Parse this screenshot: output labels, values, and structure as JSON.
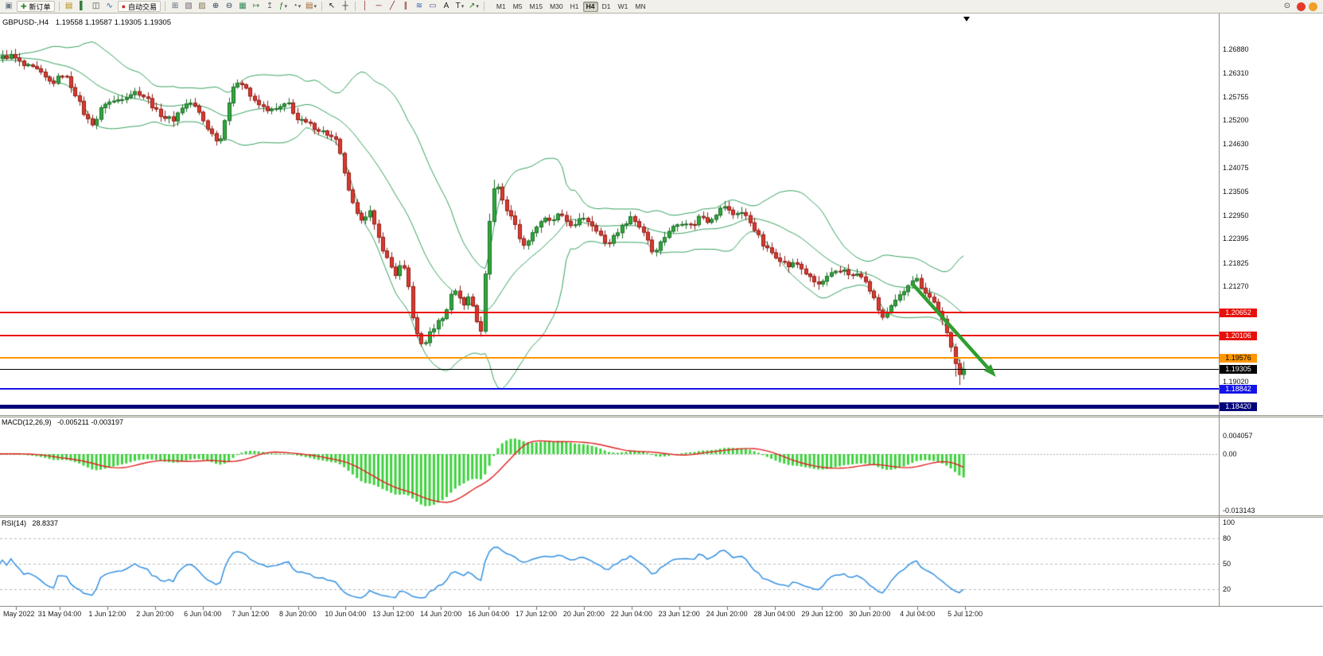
{
  "toolbar": {
    "items": [
      {
        "kind": "icon",
        "name": "chart-window-icon",
        "glyph": "▣",
        "color": "#6b7a8c"
      },
      {
        "kind": "button",
        "name": "new-order-button",
        "glyph": "✚",
        "color": "#2a8a2a",
        "label": "新订单"
      },
      {
        "kind": "sep"
      },
      {
        "kind": "icon",
        "name": "market-depth-icon",
        "glyph": "▤",
        "color": "#b8860b"
      },
      {
        "kind": "icon",
        "name": "chart-bars-icon",
        "glyph": "▌",
        "color": "#3a7d44"
      },
      {
        "kind": "icon",
        "name": "chart-candles-icon",
        "glyph": "◫",
        "color": "#444444"
      },
      {
        "kind": "icon",
        "name": "chart-line-icon",
        "glyph": "∿",
        "color": "#2a5db0"
      },
      {
        "kind": "button",
        "name": "autotrading-button",
        "glyph": "●",
        "color": "#d02a20",
        "label": "自动交易"
      },
      {
        "kind": "sep"
      },
      {
        "kind": "icon",
        "name": "new-chart-icon",
        "glyph": "⊞",
        "color": "#556677"
      },
      {
        "kind": "icon",
        "name": "profiles-icon",
        "glyph": "▧",
        "color": "#776677"
      },
      {
        "kind": "icon",
        "name": "cascade-windows-icon",
        "glyph": "▨",
        "color": "#887755"
      },
      {
        "kind": "icon",
        "name": "zoom-in-icon",
        "glyph": "⊕",
        "color": "#223355"
      },
      {
        "kind": "icon",
        "name": "zoom-out-icon",
        "glyph": "⊖",
        "color": "#223355"
      },
      {
        "kind": "icon",
        "name": "tile-windows-icon",
        "glyph": "▦",
        "color": "#2e8b57"
      },
      {
        "kind": "icon",
        "name": "auto-scroll-icon",
        "glyph": "↦",
        "color": "#3a7d44"
      },
      {
        "kind": "icon",
        "name": "chart-shift-icon",
        "glyph": "↥",
        "color": "#666666"
      },
      {
        "kind": "icon",
        "name": "indicators-button",
        "glyph": "ƒ",
        "color": "#1e7d1e",
        "dropdown": true
      },
      {
        "kind": "icon",
        "name": "periods-button",
        "glyph": "◔",
        "color": "#555555",
        "dropdown": true
      },
      {
        "kind": "icon",
        "name": "templates-button",
        "glyph": "▤",
        "color": "#a0622d",
        "dropdown": true
      },
      {
        "kind": "sep"
      },
      {
        "kind": "icon",
        "name": "cursor-icon",
        "glyph": "↖",
        "color": "#222222"
      },
      {
        "kind": "icon",
        "name": "crosshair-icon",
        "glyph": "┼",
        "color": "#222222"
      },
      {
        "kind": "sep"
      },
      {
        "kind": "icon",
        "name": "vertical-line-icon",
        "glyph": "│",
        "color": "#8b2323"
      },
      {
        "kind": "icon",
        "name": "horizontal-line-icon",
        "glyph": "─",
        "color": "#8b2323"
      },
      {
        "kind": "icon",
        "name": "trendline-icon",
        "glyph": "╱",
        "color": "#8b2323"
      },
      {
        "kind": "icon",
        "name": "equidistant-channel-icon",
        "glyph": "∥",
        "color": "#8b2323"
      },
      {
        "kind": "icon",
        "name": "fibonacci-icon",
        "glyph": "≋",
        "color": "#2a5db0"
      },
      {
        "kind": "icon",
        "name": "shapes-icon",
        "glyph": "▭",
        "color": "#555599"
      },
      {
        "kind": "icon",
        "name": "text-icon",
        "glyph": "A",
        "color": "#222222"
      },
      {
        "kind": "icon",
        "name": "text-label-icon",
        "glyph": "T",
        "color": "#222222",
        "dropdown": true
      },
      {
        "kind": "icon",
        "name": "arrow-objects-icon",
        "glyph": "↗",
        "color": "#1e7d1e",
        "dropdown": true
      },
      {
        "kind": "sep"
      }
    ],
    "timeframes": [
      "M1",
      "M5",
      "M15",
      "M30",
      "H1",
      "H4",
      "D1",
      "W1",
      "MN"
    ],
    "active_timeframe": "H4",
    "right_icons": [
      {
        "name": "search-icon",
        "glyph": "⊙",
        "color": "#444444",
        "shape": "glyph"
      },
      {
        "name": "notification-icon",
        "color": "#e23b2e",
        "shape": "circle"
      },
      {
        "name": "community-icon",
        "color": "#f0a028",
        "shape": "circle"
      }
    ]
  },
  "chart": {
    "symbol_period": "GBPUSD-,H4",
    "ohlc": "1.19558 1.19587 1.19305 1.19305",
    "price_axis_ticks": [
      "1.26880",
      "1.26310",
      "1.25755",
      "1.25200",
      "1.24630",
      "1.24075",
      "1.23505",
      "1.22950",
      "1.22395",
      "1.21825",
      "1.21270",
      "1.19020"
    ],
    "levels": [
      {
        "name": "resistance-upper",
        "label": "1.20652",
        "price": 1.20652,
        "color": "#e8100a",
        "text_color": "#ffffff",
        "thickness": 2
      },
      {
        "name": "resistance-lower",
        "label": "1.20106",
        "price": 1.20106,
        "color": "#e8100a",
        "text_color": "#ffffff",
        "thickness": 2
      },
      {
        "name": "pivot-orange",
        "label": "1.19576",
        "price": 1.19576,
        "color": "#ff9800",
        "text_color": "#000000",
        "thickness": 2
      },
      {
        "name": "current-price",
        "label": "1.19305",
        "price": 1.19305,
        "color": "#000000",
        "text_color": "#ffffff",
        "thickness": 1
      },
      {
        "name": "support-blue",
        "label": "1.18842",
        "price": 1.18842,
        "color": "#1414e8",
        "text_color": "#ffffff",
        "thickness": 2
      },
      {
        "name": "support-navy",
        "label": "1.18420",
        "price": 1.1842,
        "color": "#00007a",
        "text_color": "#ffffff",
        "thickness": 5
      }
    ]
  },
  "macd": {
    "label": "MACD(12,26,9)",
    "values": "-0.005211 -0.003197",
    "axis_labels": [
      "0.004057",
      "0.00",
      "-0.013143"
    ]
  },
  "rsi": {
    "label": "RSI(14)",
    "value": "28.8337",
    "axis_labels": [
      "100",
      "80",
      "50",
      "20"
    ],
    "levels": [
      80,
      50,
      20
    ]
  },
  "time_axis": {
    "labels": [
      "May 2022",
      "31 May 04:00",
      "1 Jun 12:00",
      "2 Jun 20:00",
      "6 Jun 04:00",
      "7 Jun 12:00",
      "8 Jun 20:00",
      "10 Jun 04:00",
      "13 Jun 12:00",
      "14 Jun 20:00",
      "16 Jun 04:00",
      "17 Jun 12:00",
      "20 Jun 20:00",
      "22 Jun 04:00",
      "23 Jun 12:00",
      "24 Jun 20:00",
      "28 Jun 04:00",
      "29 Jun 12:00",
      "30 Jun 20:00",
      "4 Jul 04:00",
      "5 Jul 12:00"
    ]
  },
  "chart_data": {
    "type": "candlestick",
    "symbol": "GBPUSD",
    "period": "H4",
    "last_close": 1.19305,
    "visible_price_range": [
      1.1827,
      1.2747
    ],
    "price_path": [
      [
        0,
        1.2668
      ],
      [
        15,
        1.2672
      ],
      [
        30,
        1.2648
      ],
      [
        45,
        1.264
      ],
      [
        55,
        1.2622
      ],
      [
        65,
        1.2606
      ],
      [
        80,
        1.2631
      ],
      [
        95,
        1.258
      ],
      [
        108,
        1.2524
      ],
      [
        118,
        1.251
      ],
      [
        130,
        1.256
      ],
      [
        145,
        1.2565
      ],
      [
        158,
        1.2578
      ],
      [
        172,
        1.2588
      ],
      [
        185,
        1.257
      ],
      [
        196,
        1.2541
      ],
      [
        208,
        1.2525
      ],
      [
        218,
        1.2522
      ],
      [
        228,
        1.255
      ],
      [
        238,
        1.2563
      ],
      [
        248,
        1.2544
      ],
      [
        258,
        1.251
      ],
      [
        268,
        1.2482
      ],
      [
        276,
        1.2468
      ],
      [
        284,
        1.254
      ],
      [
        292,
        1.259
      ],
      [
        300,
        1.2616
      ],
      [
        308,
        1.26
      ],
      [
        318,
        1.2565
      ],
      [
        330,
        1.255
      ],
      [
        342,
        1.2542
      ],
      [
        355,
        1.2552
      ],
      [
        364,
        1.256
      ],
      [
        372,
        1.2522
      ],
      [
        382,
        1.2515
      ],
      [
        392,
        1.2506
      ],
      [
        402,
        1.2496
      ],
      [
        412,
        1.2486
      ],
      [
        422,
        1.247
      ],
      [
        430,
        1.242
      ],
      [
        438,
        1.235
      ],
      [
        448,
        1.2295
      ],
      [
        456,
        1.2287
      ],
      [
        464,
        1.2308
      ],
      [
        472,
        1.2258
      ],
      [
        480,
        1.222
      ],
      [
        488,
        1.2185
      ],
      [
        497,
        1.2155
      ],
      [
        505,
        1.2182
      ],
      [
        512,
        1.214
      ],
      [
        519,
        1.205
      ],
      [
        526,
        1.1995
      ],
      [
        532,
        1.1988
      ],
      [
        540,
        1.2015
      ],
      [
        548,
        1.2038
      ],
      [
        555,
        1.2052
      ],
      [
        562,
        1.2072
      ],
      [
        569,
        1.2126
      ],
      [
        576,
        1.2108
      ],
      [
        583,
        1.208
      ],
      [
        590,
        1.2108
      ],
      [
        597,
        1.2062
      ],
      [
        604,
        1.2015
      ],
      [
        611,
        1.218
      ],
      [
        618,
        1.2355
      ],
      [
        626,
        1.2362
      ],
      [
        634,
        1.2315
      ],
      [
        642,
        1.2295
      ],
      [
        650,
        1.2258
      ],
      [
        658,
        1.222
      ],
      [
        666,
        1.2248
      ],
      [
        674,
        1.2268
      ],
      [
        682,
        1.2287
      ],
      [
        692,
        1.2278
      ],
      [
        702,
        1.2296
      ],
      [
        712,
        1.2281
      ],
      [
        722,
        1.2268
      ],
      [
        732,
        1.2292
      ],
      [
        742,
        1.2277
      ],
      [
        752,
        1.2258
      ],
      [
        762,
        1.222
      ],
      [
        772,
        1.225
      ],
      [
        782,
        1.2268
      ],
      [
        792,
        1.2292
      ],
      [
        802,
        1.2272
      ],
      [
        812,
        1.2248
      ],
      [
        820,
        1.2206
      ],
      [
        830,
        1.223
      ],
      [
        840,
        1.2258
      ],
      [
        850,
        1.2272
      ],
      [
        860,
        1.2282
      ],
      [
        870,
        1.2267
      ],
      [
        880,
        1.2296
      ],
      [
        890,
        1.2281
      ],
      [
        900,
        1.23
      ],
      [
        910,
        1.2318
      ],
      [
        920,
        1.2296
      ],
      [
        930,
        1.2305
      ],
      [
        940,
        1.2287
      ],
      [
        950,
        1.2258
      ],
      [
        960,
        1.222
      ],
      [
        970,
        1.2206
      ],
      [
        980,
        1.2192
      ],
      [
        990,
        1.2174
      ],
      [
        1000,
        1.2183
      ],
      [
        1010,
        1.2164
      ],
      [
        1020,
        1.2141
      ],
      [
        1030,
        1.213
      ],
      [
        1038,
        1.2146
      ],
      [
        1046,
        1.2156
      ],
      [
        1054,
        1.2161
      ],
      [
        1062,
        1.2168
      ],
      [
        1070,
        1.2149
      ],
      [
        1078,
        1.2157
      ],
      [
        1086,
        1.2141
      ],
      [
        1094,
        1.2116
      ],
      [
        1102,
        1.2079
      ],
      [
        1110,
        1.2051
      ],
      [
        1118,
        1.2071
      ],
      [
        1126,
        1.2093
      ],
      [
        1134,
        1.2111
      ],
      [
        1142,
        1.2135
      ],
      [
        1150,
        1.2149
      ],
      [
        1158,
        1.2126
      ],
      [
        1166,
        1.2107
      ],
      [
        1174,
        1.2088
      ],
      [
        1182,
        1.206
      ],
      [
        1190,
        1.2012
      ],
      [
        1198,
        1.1965
      ],
      [
        1205,
        1.192
      ],
      [
        1210,
        1.194
      ],
      [
        1214,
        1.19305
      ]
    ],
    "indicators": [
      {
        "name": "Bollinger Bands",
        "period": 20,
        "deviation": 2
      },
      {
        "name": "MACD",
        "fast": 12,
        "slow": 26,
        "signal": 9,
        "current": -0.005211,
        "signal_current": -0.003197,
        "scale_max": 0.004057,
        "scale_min": -0.013143
      },
      {
        "name": "RSI",
        "period": 14,
        "current": 28.8337,
        "levels": [
          80,
          50,
          20
        ]
      }
    ],
    "trend_arrow": {
      "from_price": 1.2135,
      "to_price": 1.1905,
      "color": "#2f9e2f"
    },
    "colors": {
      "up": "#2fa93c",
      "up_border": "#1d6b27",
      "down": "#dc3a30",
      "down_border": "#8f1b14",
      "bollinger": "#33a05c",
      "macd_histogram": "#3ed13e",
      "macd_signal": "#e02020",
      "rsi_line": "#3390e0",
      "arrow": "#2f9e2f"
    }
  }
}
